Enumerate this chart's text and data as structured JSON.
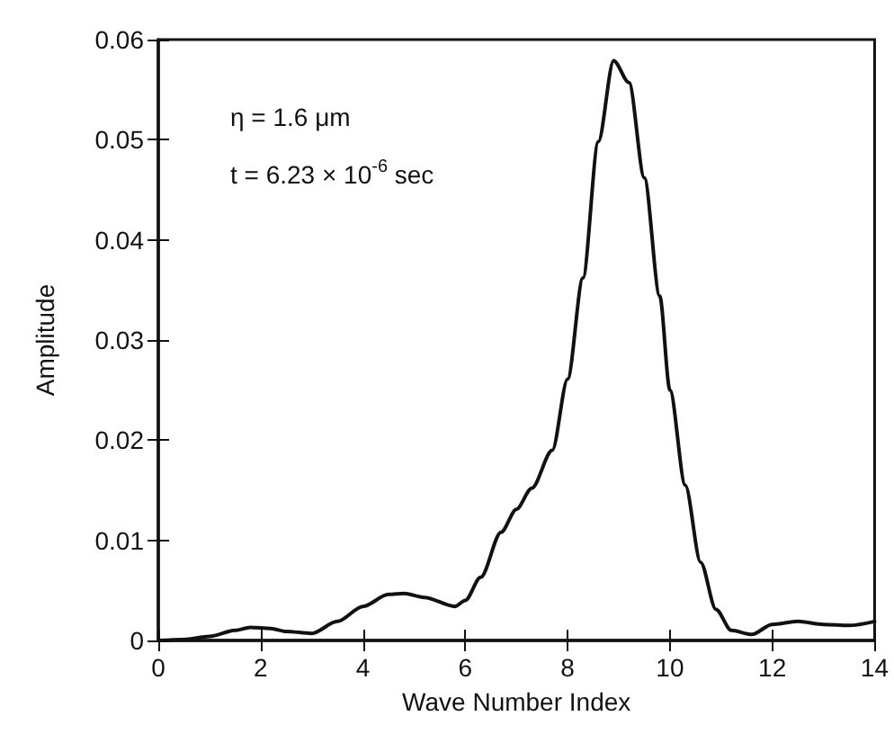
{
  "chart_data": {
    "type": "line",
    "xlabel": "Wave Number Index",
    "ylabel": "Amplitude",
    "annotations": [
      "η = 1.6 μm",
      "t = 6.23 × 10$^{-6}$ sec"
    ],
    "x": [
      0,
      0.5,
      1,
      1.5,
      1.8,
      2.2,
      2.5,
      3,
      3.5,
      4,
      4.5,
      4.8,
      5.2,
      5.8,
      6,
      6.3,
      6.7,
      7,
      7.3,
      7.7,
      8,
      8.3,
      8.6,
      8.9,
      9.2,
      9.5,
      9.8,
      10,
      10.3,
      10.6,
      10.9,
      11.2,
      11.6,
      12,
      12.5,
      13,
      13.5,
      14
    ],
    "series": [
      {
        "color": "#111111",
        "values": [
          0,
          0.0001,
          0.0004,
          0.001,
          0.0013,
          0.0012,
          0.0009,
          0.0007,
          0.0019,
          0.0034,
          0.0046,
          0.0047,
          0.0043,
          0.0034,
          0.004,
          0.0063,
          0.0108,
          0.0131,
          0.0152,
          0.019,
          0.0261,
          0.0362,
          0.0498,
          0.0579,
          0.0557,
          0.0462,
          0.0344,
          0.025,
          0.0155,
          0.0078,
          0.0031,
          0.001,
          0.0006,
          0.0016,
          0.0019,
          0.0016,
          0.0015,
          0.0019
        ]
      }
    ],
    "xlim": [
      0,
      14
    ],
    "xticks": [
      0,
      2,
      4,
      6,
      8,
      10,
      12,
      14
    ],
    "ylim": [
      0,
      0.06
    ],
    "yticks": [
      0,
      0.01,
      0.02,
      0.03,
      0.04,
      0.05,
      0.06
    ],
    "grid": false,
    "marker": "none",
    "line_style": "solid"
  }
}
